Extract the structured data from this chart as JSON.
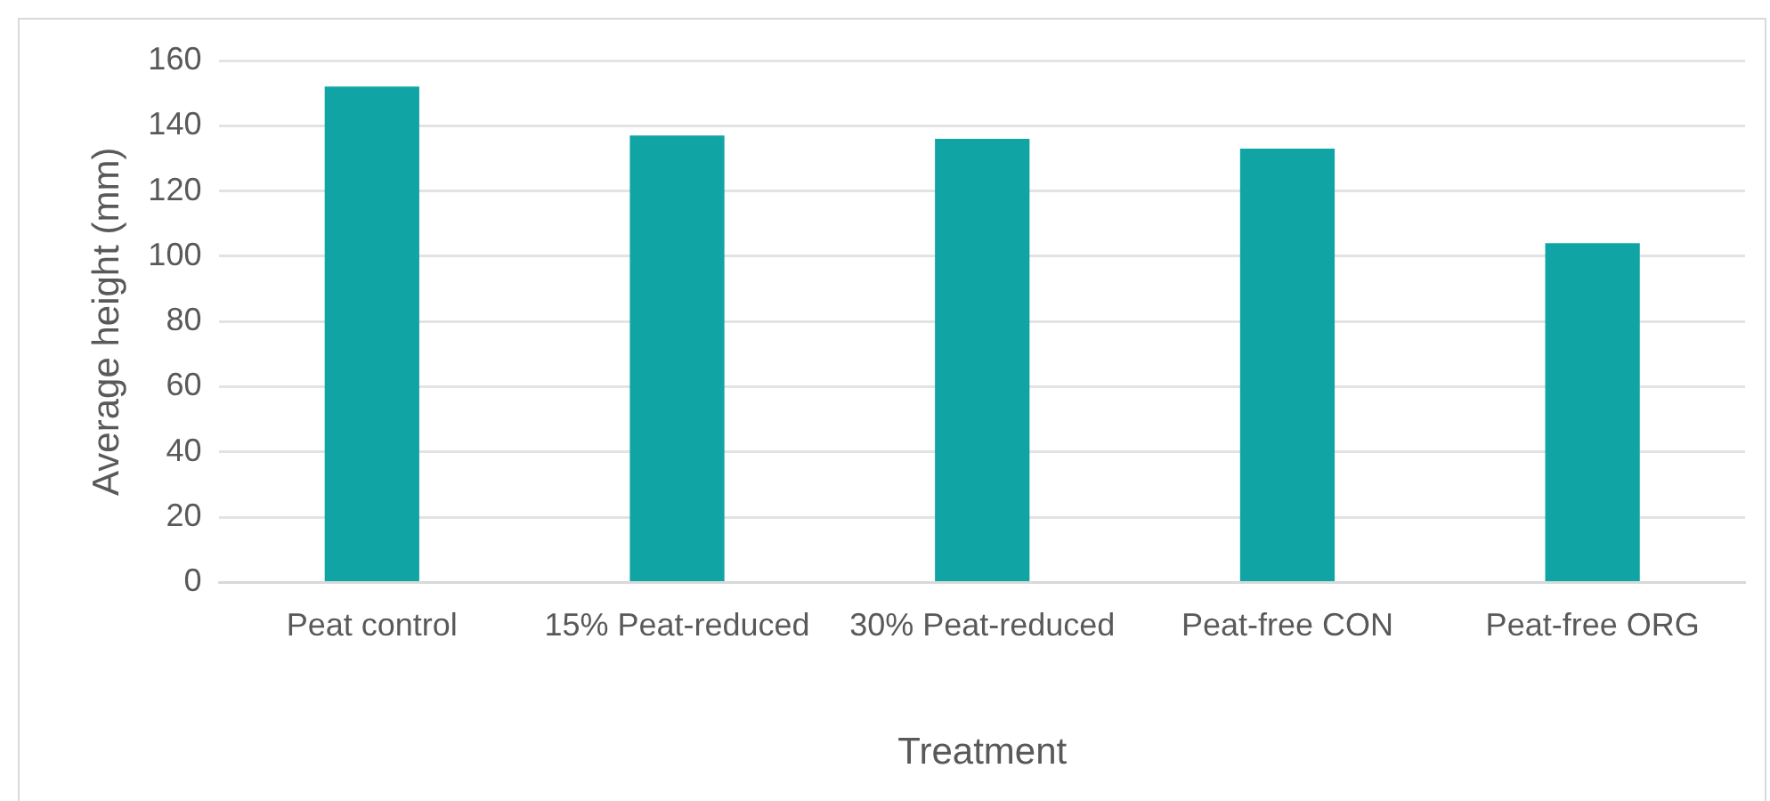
{
  "chart_data": {
    "type": "bar",
    "xlabel": "Treatment",
    "ylabel": "Average height (mm)",
    "categories": [
      "Peat control",
      "15% Peat-reduced",
      "30% Peat-reduced",
      "Peat-free CON",
      "Peat-free ORG"
    ],
    "values": [
      152,
      137,
      136,
      133,
      104
    ],
    "color": "#10a5a4",
    "ylim": [
      0,
      160
    ],
    "yticks": [
      0,
      20,
      40,
      60,
      80,
      100,
      120,
      140,
      160
    ],
    "grid": "y",
    "legend": false
  }
}
